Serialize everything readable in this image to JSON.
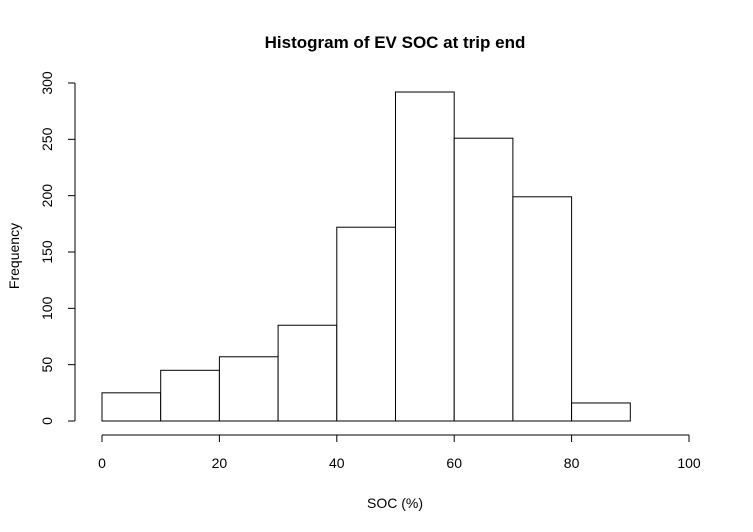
{
  "chart_data": {
    "type": "bar",
    "title": "Histogram of EV SOC at trip end",
    "xlabel": "SOC (%)",
    "ylabel": "Frequency",
    "bins": [
      {
        "start": 0,
        "end": 10,
        "count": 25
      },
      {
        "start": 10,
        "end": 20,
        "count": 45
      },
      {
        "start": 20,
        "end": 30,
        "count": 57
      },
      {
        "start": 30,
        "end": 40,
        "count": 85
      },
      {
        "start": 40,
        "end": 50,
        "count": 172
      },
      {
        "start": 50,
        "end": 60,
        "count": 292
      },
      {
        "start": 60,
        "end": 70,
        "count": 251
      },
      {
        "start": 70,
        "end": 80,
        "count": 199
      },
      {
        "start": 80,
        "end": 90,
        "count": 16
      }
    ],
    "xlim": [
      0,
      100
    ],
    "ylim": [
      0,
      300
    ],
    "xticks": [
      "0",
      "20",
      "40",
      "60",
      "80",
      "100"
    ],
    "yticks": [
      "0",
      "50",
      "100",
      "150",
      "200",
      "250",
      "300"
    ],
    "bar_color": "#ffffff",
    "border_color": "#000000",
    "grid": false
  }
}
